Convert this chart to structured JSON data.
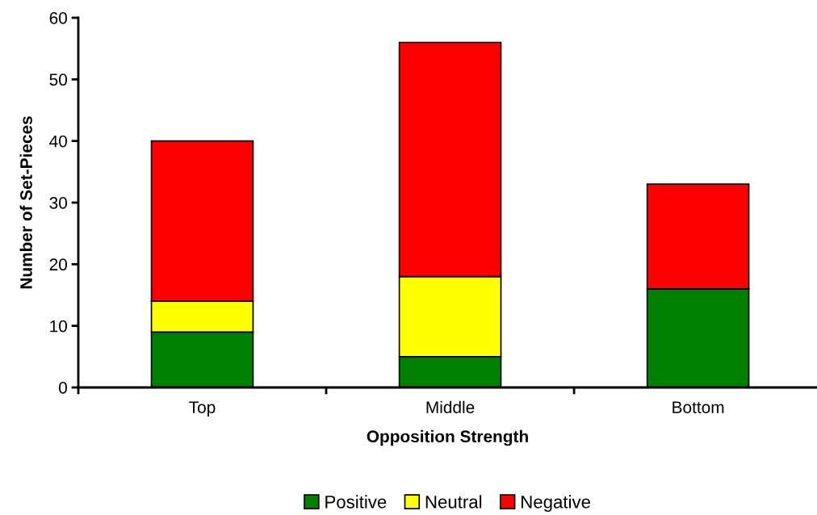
{
  "chart_data": {
    "type": "bar",
    "stacked": true,
    "xlabel": "Opposition Strength",
    "ylabel": "Number of Set-Pieces",
    "categories": [
      "Top",
      "Middle",
      "Bottom"
    ],
    "series": [
      {
        "name": "Positive",
        "color": "#008000",
        "values": [
          9,
          5,
          16
        ]
      },
      {
        "name": "Neutral",
        "color": "#ffff00",
        "values": [
          5,
          13,
          0
        ]
      },
      {
        "name": "Negative",
        "color": "#ff0000",
        "values": [
          26,
          38,
          17
        ]
      }
    ],
    "ylim": [
      0,
      60
    ],
    "yticks": [
      0,
      10,
      20,
      30,
      40,
      50,
      60
    ],
    "grid": false,
    "legend": "bottom"
  }
}
